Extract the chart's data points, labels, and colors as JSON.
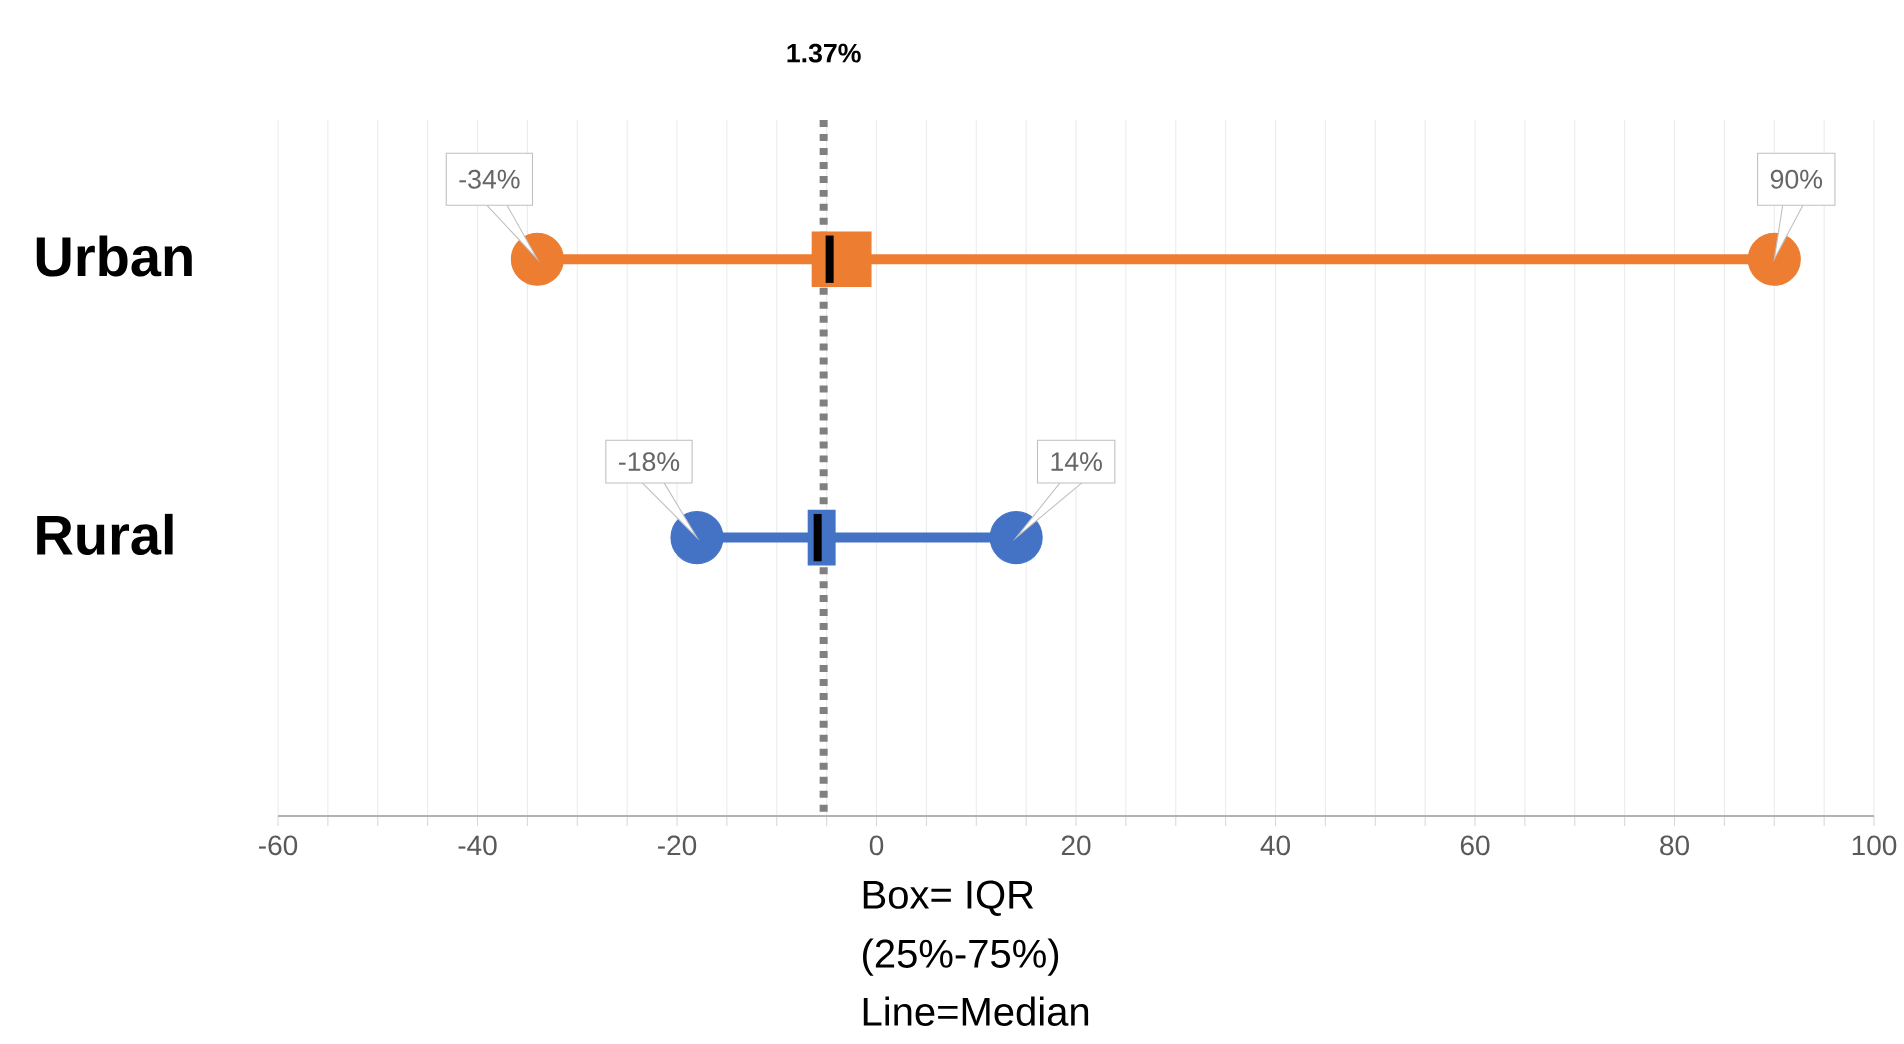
{
  "chart_data": {
    "type": "box",
    "orientation": "horizontal",
    "categories": [
      "Urban",
      "Rural"
    ],
    "boxes": [
      {
        "low": -34,
        "q1": -6.5,
        "median": -4.7,
        "q3": -0.5,
        "high": 90
      },
      {
        "low": -18,
        "q1": -6.9,
        "median": -5.9,
        "q3": -4.1,
        "high": 14
      }
    ],
    "colors": [
      "#ed7d31",
      "#4472c4"
    ],
    "xlim": [
      -60,
      100
    ],
    "xticks": [
      -60,
      -40,
      -20,
      0,
      20,
      40,
      60,
      80,
      100
    ],
    "grid": "x",
    "ref_lines": [
      {
        "axis": "x",
        "value": -5.3,
        "color": "#808080",
        "line_style": "dotted"
      }
    ],
    "annotations": [
      {
        "text": "-34%",
        "x": -34,
        "y": "Urban"
      },
      {
        "text": "90%",
        "x": 90,
        "y": "Urban"
      },
      {
        "text": "-18%",
        "x": -18,
        "y": "Rural"
      },
      {
        "text": "14%",
        "x": 14,
        "y": "Rural"
      },
      "1.37%",
      "Box= IQR",
      "(25%-75%)",
      "Line=Median"
    ]
  }
}
